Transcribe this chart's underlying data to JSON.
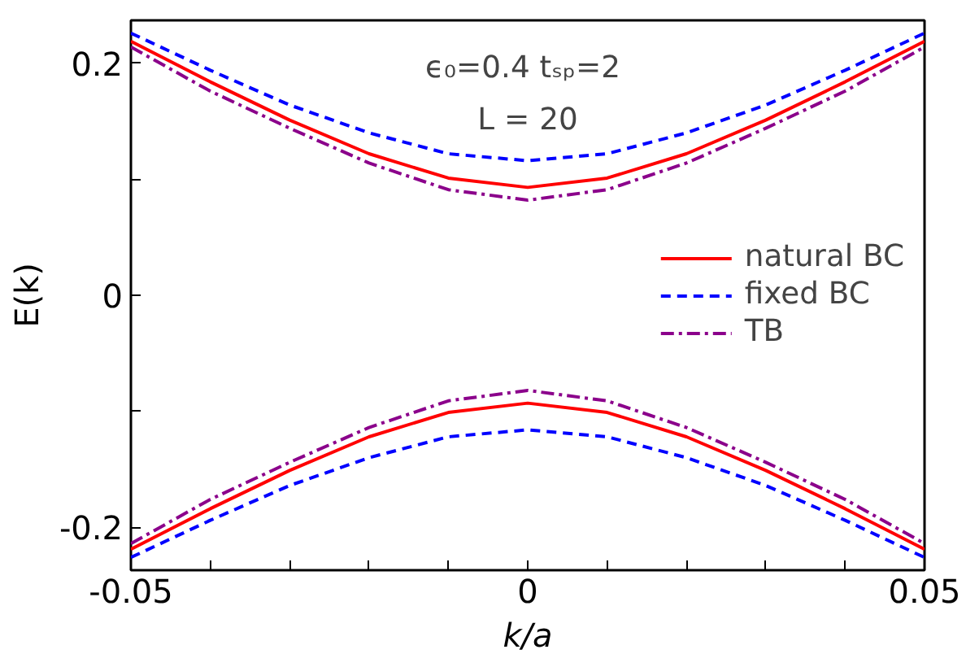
{
  "chart_data": {
    "type": "line",
    "xlabel": "k/a",
    "ylabel": "E(k)",
    "annotations": [
      "ϵ₀=0.4  tₛₚ=2",
      "L = 20"
    ],
    "x": [
      -0.05,
      -0.04,
      -0.03,
      -0.02,
      -0.01,
      0,
      0.01,
      0.02,
      0.03,
      0.04,
      0.05
    ],
    "series": [
      {
        "name": "natural BC",
        "color": "#ff0000",
        "line_style": "solid",
        "values": [
          0.219,
          0.184,
          0.151,
          0.122,
          0.101,
          0.093,
          0.101,
          0.122,
          0.151,
          0.184,
          0.219
        ]
      },
      {
        "name": "fixed BC",
        "color": "#0000ff",
        "line_style": "dashed",
        "values": [
          0.226,
          0.194,
          0.164,
          0.14,
          0.122,
          0.116,
          0.122,
          0.14,
          0.164,
          0.194,
          0.226
        ]
      },
      {
        "name": "TB",
        "color": "#8b008b",
        "line_style": "dashdot",
        "values": [
          0.214,
          0.176,
          0.144,
          0.114,
          0.091,
          0.082,
          0.091,
          0.114,
          0.144,
          0.176,
          0.214
        ]
      },
      {
        "color": "#ff0000",
        "line_style": "solid",
        "values": [
          -0.219,
          -0.184,
          -0.151,
          -0.122,
          -0.101,
          -0.093,
          -0.101,
          -0.122,
          -0.151,
          -0.184,
          -0.219
        ]
      },
      {
        "color": "#0000ff",
        "line_style": "dashed",
        "values": [
          -0.226,
          -0.194,
          -0.164,
          -0.14,
          -0.122,
          -0.116,
          -0.122,
          -0.14,
          -0.164,
          -0.194,
          -0.226
        ]
      },
      {
        "color": "#8b008b",
        "line_style": "dashdot",
        "values": [
          -0.214,
          -0.176,
          -0.144,
          -0.114,
          -0.091,
          -0.082,
          -0.091,
          -0.114,
          -0.144,
          -0.176,
          -0.214
        ]
      }
    ],
    "xlim": [
      -0.05,
      0.05
    ],
    "ylim": [
      -0.237,
      0.237
    ],
    "xticks": [
      "-0.05",
      {
        "value": -0.04,
        "label": null
      },
      {
        "value": -0.03,
        "label": null
      },
      {
        "value": -0.02,
        "label": null
      },
      {
        "value": -0.01,
        "label": null
      },
      {
        "value": 0,
        "label": "0"
      },
      {
        "value": 0.01,
        "label": null
      },
      {
        "value": 0.02,
        "label": null
      },
      {
        "value": 0.03,
        "label": null
      },
      {
        "value": 0.04,
        "label": null
      },
      {
        "value": 0.05,
        "label": "0.05"
      }
    ],
    "yticks": [
      {
        "value": -0.2,
        "label": "-0.2"
      },
      {
        "value": -0.1,
        "label": null
      },
      {
        "value": 0,
        "label": "0"
      },
      {
        "value": 0.1,
        "label": null
      },
      {
        "value": 0.2,
        "label": "0.2"
      }
    ],
    "grid": false,
    "legend": "right",
    "marker": "none"
  }
}
